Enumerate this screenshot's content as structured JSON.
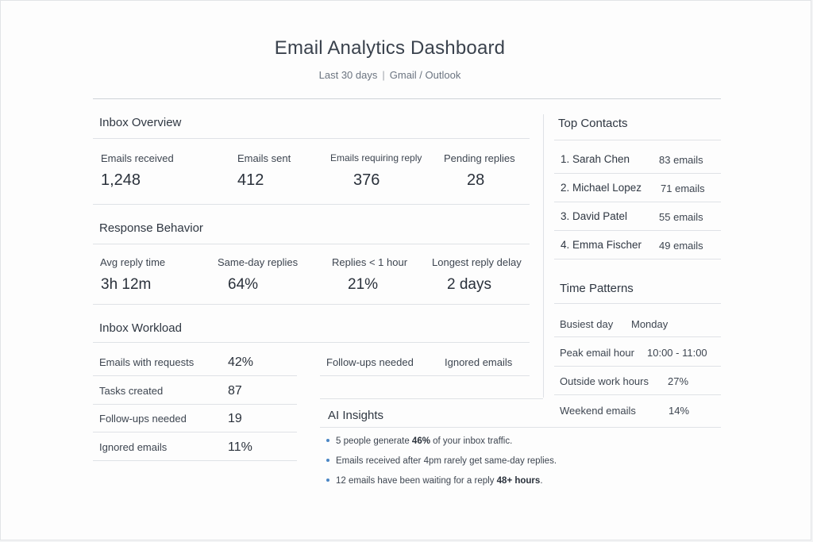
{
  "header": {
    "title": "Email Analytics Dashboard",
    "period": "Last 30 days",
    "separator": "|",
    "sources": "Gmail / Outlook"
  },
  "inbox_overview": {
    "title": "Inbox Overview",
    "metrics": [
      {
        "label": "Emails received",
        "value": "1,248"
      },
      {
        "label": "Emails sent",
        "value": "412"
      },
      {
        "label": "Emails requiring reply",
        "value": "376"
      },
      {
        "label": "Pending replies",
        "value": "28"
      }
    ]
  },
  "response_behavior": {
    "title": "Response Behavior",
    "metrics": [
      {
        "label": "Avg reply time",
        "value": "3h 12m"
      },
      {
        "label": "Same-day replies",
        "value": "64%"
      },
      {
        "label": "Replies < 1 hour",
        "value": "21%"
      },
      {
        "label": "Longest reply delay",
        "value": "2 days"
      }
    ]
  },
  "inbox_workload": {
    "title": "Inbox Workload",
    "rows": [
      {
        "label": "Emails with requests",
        "value": "42%"
      },
      {
        "label": "Tasks created",
        "value": "87"
      },
      {
        "label": "Follow-ups needed",
        "value": "19"
      },
      {
        "label": "Ignored emails",
        "value": "11%"
      }
    ],
    "right_headers": [
      "Follow-ups needed",
      "Ignored emails"
    ]
  },
  "ai_insights": {
    "title": "AI Insights",
    "items": [
      {
        "pre": "5 people generate ",
        "bold": "46%",
        "post": " of your inbox traffic."
      },
      {
        "pre": "Emails received after 4pm rarely get same-day replies.",
        "bold": "",
        "post": ""
      },
      {
        "pre": "12 emails have been waiting for a reply ",
        "bold": "48+ hours",
        "post": "."
      }
    ],
    "bullet_color": "#4a86c5"
  },
  "top_contacts": {
    "title": "Top Contacts",
    "items": [
      {
        "name": "1.  Sarah Chen",
        "count": "83",
        "unit": "emails"
      },
      {
        "name": "2.  Michael Lopez",
        "count": "71",
        "unit": "emails"
      },
      {
        "name": "3.  David Patel",
        "count": "55",
        "unit": "emails"
      },
      {
        "name": "4.  Emma Fischer",
        "count": "49",
        "unit": "emails"
      }
    ]
  },
  "time_patterns": {
    "title": "Time Patterns",
    "rows": [
      {
        "label": "Busiest day",
        "value": "Monday"
      },
      {
        "label": "Peak email hour",
        "value": "10:00 - 11:00"
      },
      {
        "label": "Outside work hours",
        "value": "27%"
      },
      {
        "label": "Weekend emails",
        "value": "14%"
      }
    ]
  }
}
